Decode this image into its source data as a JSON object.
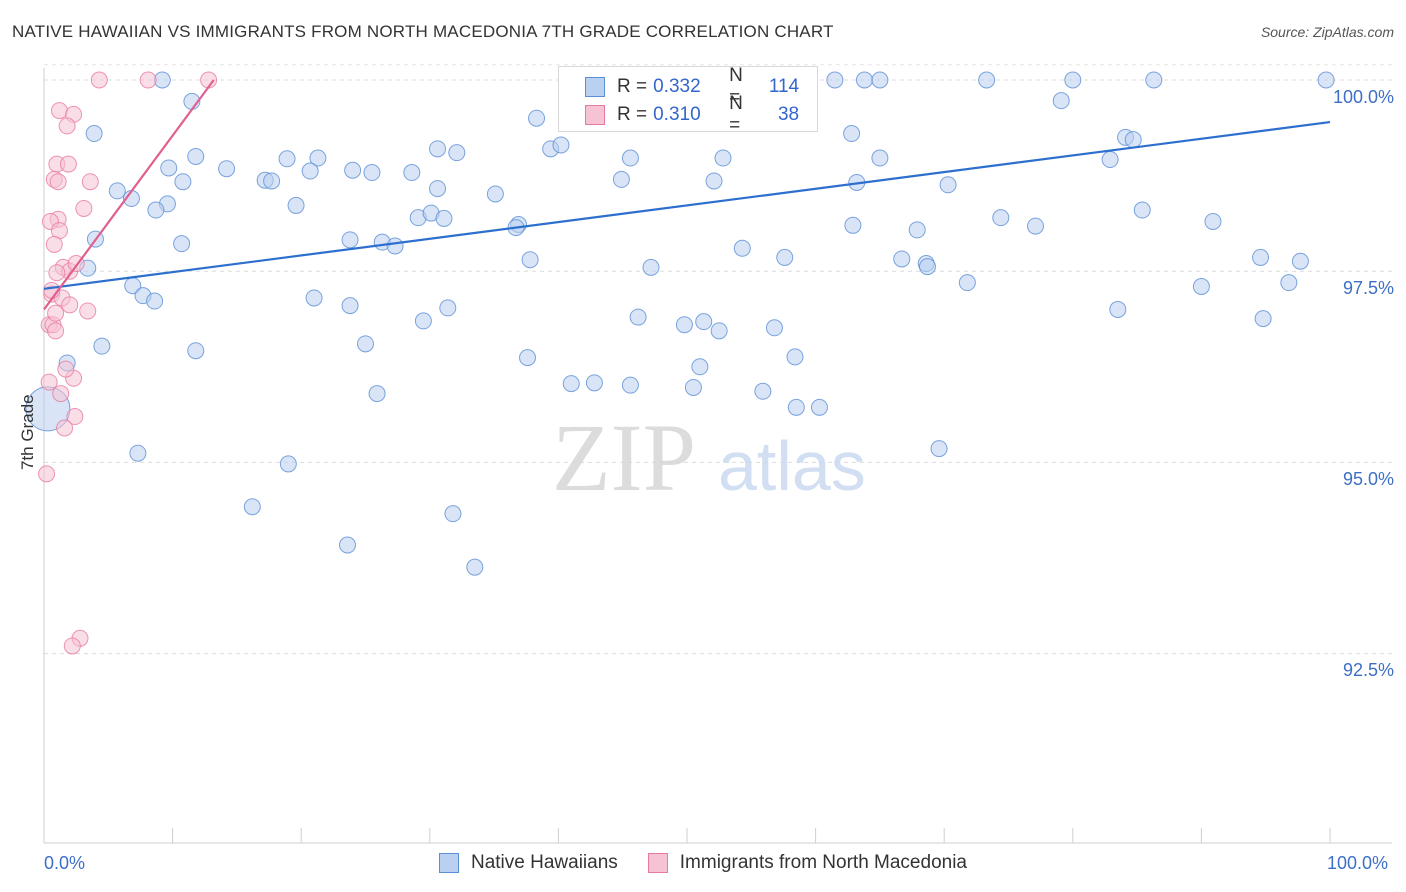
{
  "title": "NATIVE HAWAIIAN VS IMMIGRANTS FROM NORTH MACEDONIA 7TH GRADE CORRELATION CHART",
  "source": "Source: ZipAtlas.com",
  "watermark": {
    "zip": "ZIP",
    "atlas": "atlas"
  },
  "legend": {
    "rows": [
      {
        "r_label": "R =",
        "r_value": "0.332",
        "n_label": "N =",
        "n_value": "114"
      },
      {
        "r_label": "R =",
        "r_value": "0.310",
        "n_label": "N =",
        "n_value": "38"
      }
    ]
  },
  "colors": {
    "blue": "#5b8fd6",
    "blue_fill": "#b9d0f0",
    "pink": "#e87aa0",
    "pink_fill": "#f6c3d4",
    "blue_line": "#2c6fce",
    "pink_line": "#e06090",
    "tick_text": "#3d6fc6"
  },
  "chart_data": {
    "type": "scatter",
    "title": "NATIVE HAWAIIAN VS IMMIGRANTS FROM NORTH MACEDONIA 7TH GRADE CORRELATION CHART",
    "xlabel": "",
    "ylabel": "7th Grade",
    "xlim": [
      0,
      100
    ],
    "ylim": [
      90.2,
      100.2
    ],
    "x_tick_labels": [
      "0.0%",
      "100.0%"
    ],
    "y_ticks": [
      92.5,
      95.0,
      97.5,
      100.0
    ],
    "y_tick_labels": [
      "92.5%",
      "95.0%",
      "97.5%",
      "100.0%"
    ],
    "grid": "horizontal dashed",
    "legend_position": "top-center",
    "series": [
      {
        "name": "Native Hawaiians",
        "color": "#5b8fd6",
        "r": 0.332,
        "n": 114,
        "trend": [
          [
            0,
            97.27
          ],
          [
            100,
            99.45
          ]
        ],
        "points": [
          [
            9.2,
            100
          ],
          [
            41.3,
            100
          ],
          [
            46.9,
            100
          ],
          [
            61.5,
            100
          ],
          [
            63.8,
            100
          ],
          [
            65,
            100
          ],
          [
            73.3,
            100
          ],
          [
            80,
            100
          ],
          [
            86.3,
            100
          ],
          [
            99.7,
            100
          ],
          [
            11.5,
            99.72
          ],
          [
            79.1,
            99.73
          ],
          [
            3.9,
            99.3
          ],
          [
            38.3,
            99.5
          ],
          [
            62.8,
            99.3
          ],
          [
            84.1,
            99.25
          ],
          [
            84.7,
            99.22
          ],
          [
            39.4,
            99.1
          ],
          [
            40.2,
            99.15
          ],
          [
            30.6,
            99.1
          ],
          [
            32.1,
            99.05
          ],
          [
            11.8,
            99.0
          ],
          [
            18.9,
            98.97
          ],
          [
            21.3,
            98.98
          ],
          [
            45.6,
            98.98
          ],
          [
            52.8,
            98.98
          ],
          [
            65.0,
            98.98
          ],
          [
            82.9,
            98.96
          ],
          [
            9.7,
            98.85
          ],
          [
            14.2,
            98.84
          ],
          [
            20.7,
            98.81
          ],
          [
            24.0,
            98.82
          ],
          [
            25.5,
            98.79
          ],
          [
            28.6,
            98.79
          ],
          [
            44.9,
            98.7
          ],
          [
            17.2,
            98.69
          ],
          [
            17.7,
            98.68
          ],
          [
            52.1,
            98.68
          ],
          [
            63.2,
            98.66
          ],
          [
            70.3,
            98.63
          ],
          [
            5.7,
            98.55
          ],
          [
            10.8,
            98.67
          ],
          [
            30.6,
            98.58
          ],
          [
            35.1,
            98.51
          ],
          [
            6.8,
            98.45
          ],
          [
            9.6,
            98.38
          ],
          [
            19.6,
            98.36
          ],
          [
            29.1,
            98.2
          ],
          [
            8.7,
            98.3
          ],
          [
            30.1,
            98.26
          ],
          [
            31.1,
            98.19
          ],
          [
            36.9,
            98.11
          ],
          [
            36.7,
            98.07
          ],
          [
            62.9,
            98.1
          ],
          [
            67.9,
            98.04
          ],
          [
            74.4,
            98.2
          ],
          [
            77.1,
            98.09
          ],
          [
            85.4,
            98.3
          ],
          [
            4.0,
            97.92
          ],
          [
            10.7,
            97.86
          ],
          [
            23.8,
            97.91
          ],
          [
            26.3,
            97.88
          ],
          [
            27.3,
            97.83
          ],
          [
            37.8,
            97.65
          ],
          [
            54.3,
            97.8
          ],
          [
            57.6,
            97.68
          ],
          [
            66.7,
            97.66
          ],
          [
            68.6,
            97.6
          ],
          [
            68.7,
            97.56
          ],
          [
            71.8,
            97.35
          ],
          [
            90.9,
            98.15
          ],
          [
            47.2,
            97.55
          ],
          [
            6.9,
            97.31
          ],
          [
            3.4,
            97.54
          ],
          [
            7.7,
            97.18
          ],
          [
            8.6,
            97.11
          ],
          [
            21.0,
            97.15
          ],
          [
            23.8,
            97.05
          ],
          [
            31.4,
            97.02
          ],
          [
            46.2,
            96.9
          ],
          [
            49.8,
            96.8
          ],
          [
            51.3,
            96.84
          ],
          [
            56.8,
            96.76
          ],
          [
            25.0,
            96.55
          ],
          [
            4.5,
            96.52
          ],
          [
            11.8,
            96.46
          ],
          [
            37.6,
            96.37
          ],
          [
            51.0,
            96.25
          ],
          [
            41.0,
            96.03
          ],
          [
            42.8,
            96.04
          ],
          [
            45.6,
            96.01
          ],
          [
            50.5,
            95.98
          ],
          [
            55.9,
            95.93
          ],
          [
            58.5,
            95.72
          ],
          [
            60.3,
            95.72
          ],
          [
            7.3,
            95.12
          ],
          [
            19.0,
            94.98
          ],
          [
            16.2,
            94.42
          ],
          [
            31.8,
            94.33
          ],
          [
            23.6,
            93.92
          ],
          [
            33.5,
            93.63
          ],
          [
            69.6,
            95.18
          ],
          [
            1.8,
            96.3
          ],
          [
            0.3,
            95.7
          ],
          [
            25.9,
            95.9
          ],
          [
            29.5,
            96.85
          ],
          [
            52.5,
            96.72
          ],
          [
            58.4,
            96.38
          ],
          [
            83.5,
            97.0
          ],
          [
            90.0,
            97.3
          ],
          [
            94.8,
            96.88
          ],
          [
            96.8,
            97.35
          ],
          [
            94.6,
            97.68
          ],
          [
            97.7,
            97.63
          ]
        ]
      },
      {
        "name": "Immigrants from North Macedonia",
        "color": "#e87aa0",
        "r": 0.31,
        "n": 38,
        "trend": [
          [
            0,
            97.0
          ],
          [
            13.2,
            100.0
          ]
        ],
        "points": [
          [
            4.3,
            100
          ],
          [
            8.1,
            100
          ],
          [
            12.8,
            100
          ],
          [
            1.2,
            99.6
          ],
          [
            2.3,
            99.55
          ],
          [
            1.8,
            99.4
          ],
          [
            1.0,
            98.9
          ],
          [
            1.9,
            98.9
          ],
          [
            0.8,
            98.7
          ],
          [
            1.1,
            98.67
          ],
          [
            3.6,
            98.67
          ],
          [
            3.1,
            98.32
          ],
          [
            1.1,
            98.18
          ],
          [
            0.5,
            98.15
          ],
          [
            1.2,
            98.03
          ],
          [
            0.8,
            97.85
          ],
          [
            1.5,
            97.55
          ],
          [
            2.0,
            97.5
          ],
          [
            1.0,
            97.48
          ],
          [
            0.6,
            97.2
          ],
          [
            1.4,
            97.15
          ],
          [
            2.0,
            97.06
          ],
          [
            3.4,
            96.98
          ],
          [
            0.4,
            96.8
          ],
          [
            0.7,
            96.8
          ],
          [
            2.3,
            96.1
          ],
          [
            0.4,
            96.05
          ],
          [
            1.3,
            95.9
          ],
          [
            2.4,
            95.6
          ],
          [
            1.6,
            95.45
          ],
          [
            0.2,
            94.85
          ],
          [
            2.8,
            92.7
          ],
          [
            2.2,
            92.6
          ],
          [
            0.6,
            97.25
          ],
          [
            0.9,
            96.95
          ],
          [
            2.5,
            97.6
          ],
          [
            1.7,
            96.22
          ],
          [
            0.9,
            96.72
          ]
        ]
      }
    ]
  },
  "bottom_legend": [
    {
      "label": "Native Hawaiians"
    },
    {
      "label": "Immigrants from North Macedonia"
    }
  ]
}
